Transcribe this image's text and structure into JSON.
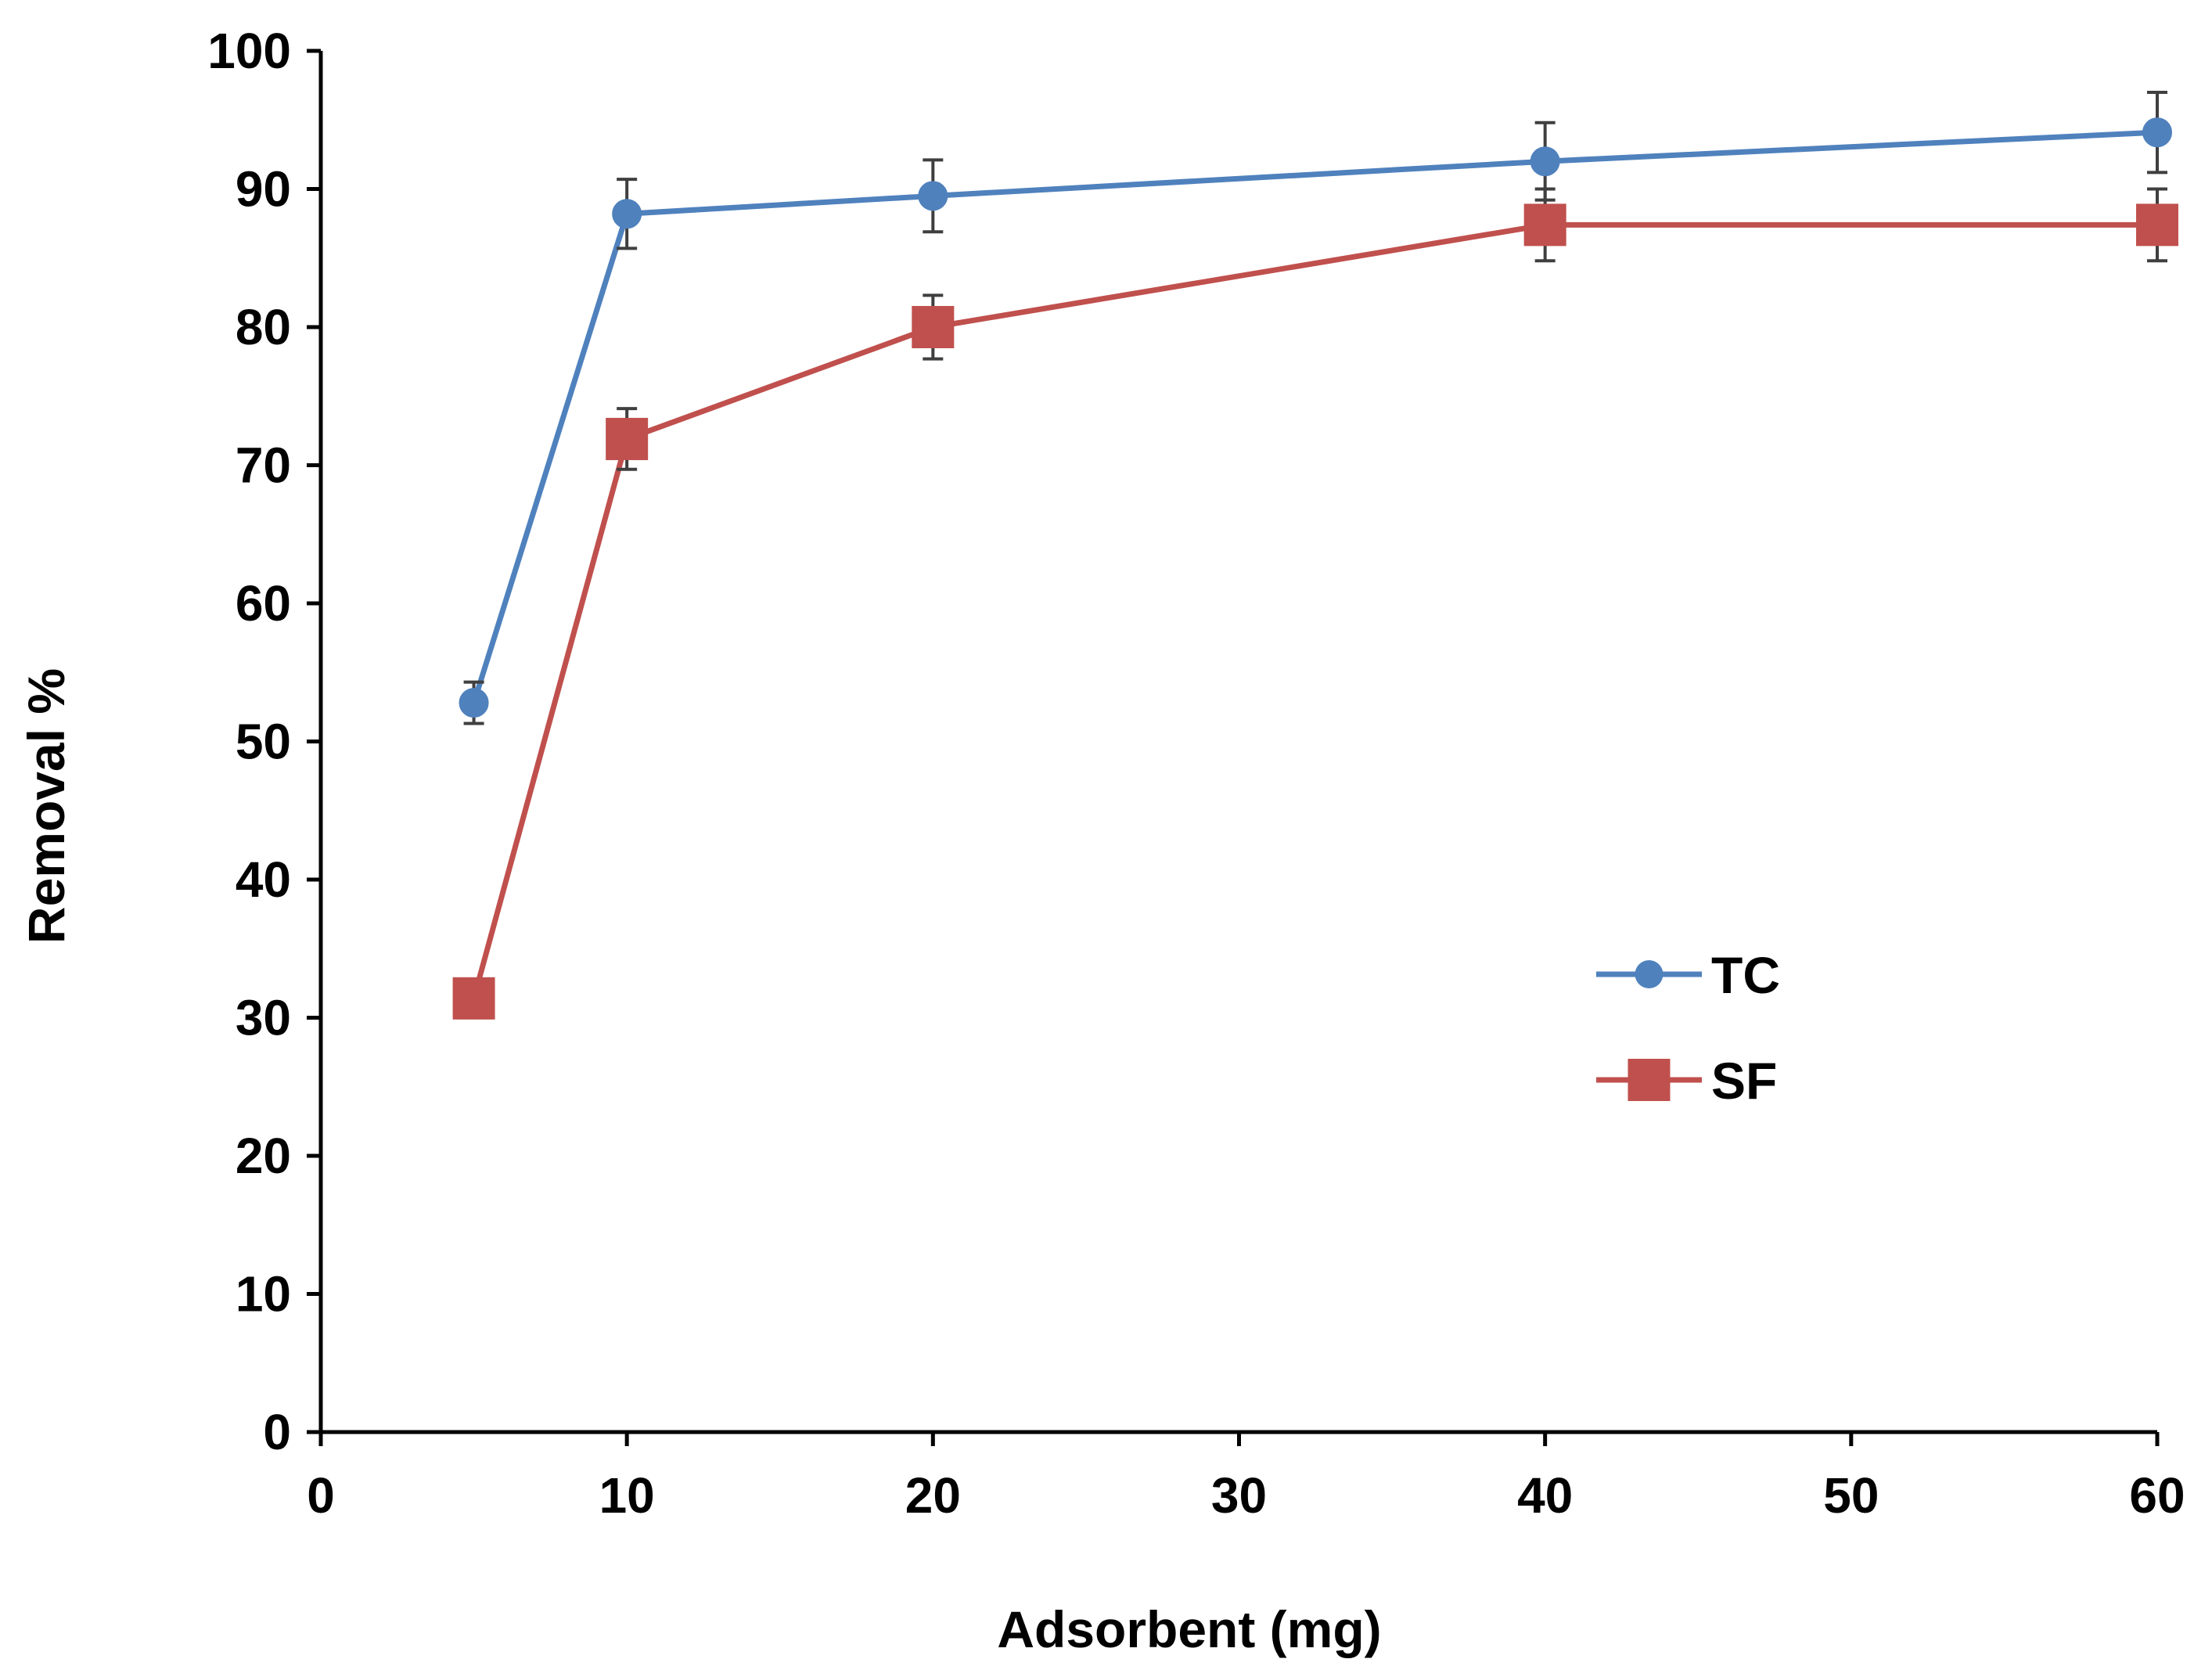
{
  "chart_data": {
    "type": "line",
    "title": "",
    "xlabel": "Adsorbent (mg)",
    "ylabel": "Removal %",
    "xlim": [
      0,
      60
    ],
    "ylim": [
      0,
      100
    ],
    "xticks": [
      0,
      10,
      20,
      30,
      40,
      50,
      60
    ],
    "yticks": [
      0,
      10,
      20,
      30,
      40,
      50,
      60,
      70,
      80,
      90,
      100
    ],
    "grid": false,
    "legend_position": "center-right",
    "series": [
      {
        "name": "TC",
        "color": "#4F81BD",
        "marker": "circle",
        "x": [
          5,
          10,
          20,
          40,
          60
        ],
        "y": [
          52.8,
          88.2,
          89.5,
          92.0,
          94.1
        ],
        "error": [
          1.5,
          2.5,
          2.6,
          2.8,
          2.9
        ]
      },
      {
        "name": "SF",
        "color": "#C0504D",
        "marker": "square",
        "x": [
          5,
          10,
          20,
          40,
          60
        ],
        "y": [
          31.4,
          71.9,
          80.0,
          87.4,
          87.4
        ],
        "error": [
          0,
          2.2,
          2.3,
          2.6,
          2.6
        ]
      }
    ]
  }
}
